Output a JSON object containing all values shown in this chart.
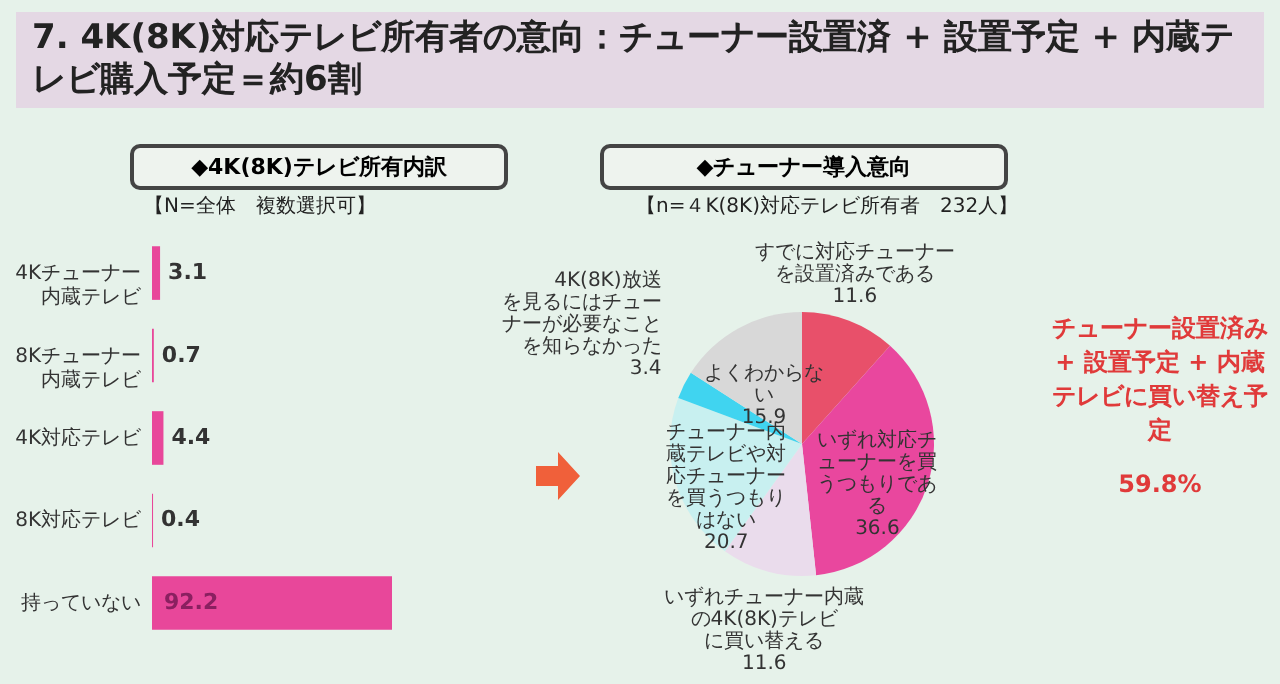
{
  "chart_data": [
    {
      "type": "bar",
      "orientation": "horizontal",
      "title": "7. 4K(8K)対応テレビ所有者の意向：チューナー設置済 + 設置予定 + 内蔵テレビ購入予定＝約6割",
      "subtitle": "◆4K(8K)テレビ所有内訳",
      "annotations": [
        "【N=全体　複数選択可】"
      ],
      "categories": [
        "4Kチューナー内蔵テレビ",
        "8Kチューナー内蔵テレビ",
        "4K対応テレビ",
        "8K対応テレビ",
        "持っていない"
      ],
      "values": [
        3.1,
        0.7,
        4.4,
        0.4,
        92.2
      ],
      "color": "#e8479a",
      "data_labels": true
    },
    {
      "type": "pie",
      "title": "◆チューナー導入意向",
      "subtitle": "【n=４K(8K)対応テレビ所有者　232人】",
      "annotations": [
        "チューナー設置済み + 設置予定 + 内蔵テレビに買い替え予定",
        "59.8%"
      ],
      "categories": [
        "すでに対応チューナーを設置済みである",
        "いずれ対応チューナーを買うつもりである",
        "いずれチューナー内蔵の4K(8K)テレビに買い替える",
        "チューナー内蔵テレビや対応チューナーを買うつもりはない",
        "4K(8K)放送を見るにはチューナーが必要なことを知らなかった",
        "よくわからない"
      ],
      "values": [
        11.6,
        36.6,
        11.6,
        20.7,
        3.4,
        15.9
      ],
      "colors": [
        "#e8506a",
        "#e9479e",
        "#eadcec",
        "#c8f0f0",
        "#40d4f0",
        "#d8d8d8"
      ],
      "data_labels": true
    }
  ]
}
